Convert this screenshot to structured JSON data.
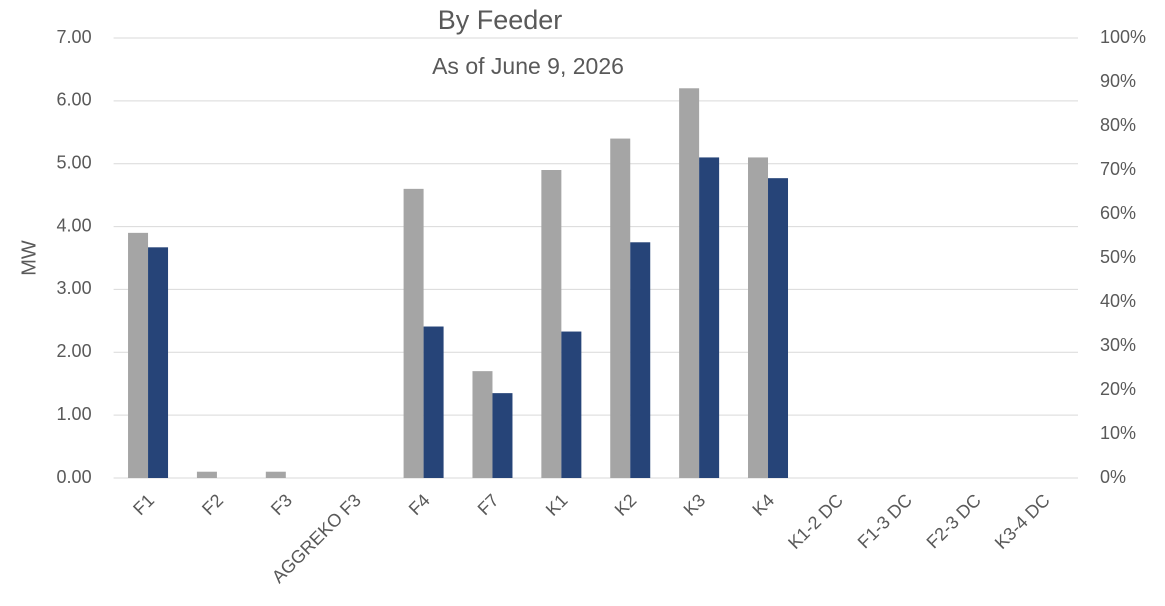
{
  "chart_data": {
    "type": "bar",
    "title": "By Feeder",
    "subtitle": "As of June 9, 2026",
    "y_label": "MW",
    "categories": [
      "F1",
      "F2",
      "F3",
      "AGGREKO F3",
      "F4",
      "F7",
      "K1",
      "K2",
      "K3",
      "K4",
      "K1-2 DC",
      "F1-3 DC",
      "F2-3 DC",
      "K3-4 DC"
    ],
    "series": [
      {
        "color": "#a5a5a5",
        "values": [
          3.9,
          0.1,
          0.1,
          0,
          4.6,
          1.7,
          4.9,
          5.4,
          6.2,
          5.1,
          0,
          0,
          0,
          0
        ]
      },
      {
        "color": "#264478",
        "values": [
          3.67,
          0,
          0,
          0,
          2.41,
          1.35,
          2.33,
          3.75,
          5.1,
          4.77,
          0,
          0,
          0,
          0
        ]
      }
    ],
    "ylim": [
      0,
      7
    ],
    "yticks": [
      {
        "value": 0,
        "label": "0.00"
      },
      {
        "value": 1,
        "label": "1.00"
      },
      {
        "value": 2,
        "label": "2.00"
      },
      {
        "value": 3,
        "label": "3.00"
      },
      {
        "value": 4,
        "label": "4.00"
      },
      {
        "value": 5,
        "label": "5.00"
      },
      {
        "value": 6,
        "label": "6.00"
      },
      {
        "value": 7,
        "label": "7.00"
      }
    ],
    "y2lim": [
      0,
      100
    ],
    "y2ticks": [
      {
        "value": 0,
        "label": "0%"
      },
      {
        "value": 10,
        "label": "10%"
      },
      {
        "value": 20,
        "label": "20%"
      },
      {
        "value": 30,
        "label": "30%"
      },
      {
        "value": 40,
        "label": "40%"
      },
      {
        "value": 50,
        "label": "50%"
      },
      {
        "value": 60,
        "label": "60%"
      },
      {
        "value": 70,
        "label": "70%"
      },
      {
        "value": 80,
        "label": "80%"
      },
      {
        "value": 90,
        "label": "90%"
      },
      {
        "value": 100,
        "label": "100%"
      }
    ],
    "grid": true
  }
}
